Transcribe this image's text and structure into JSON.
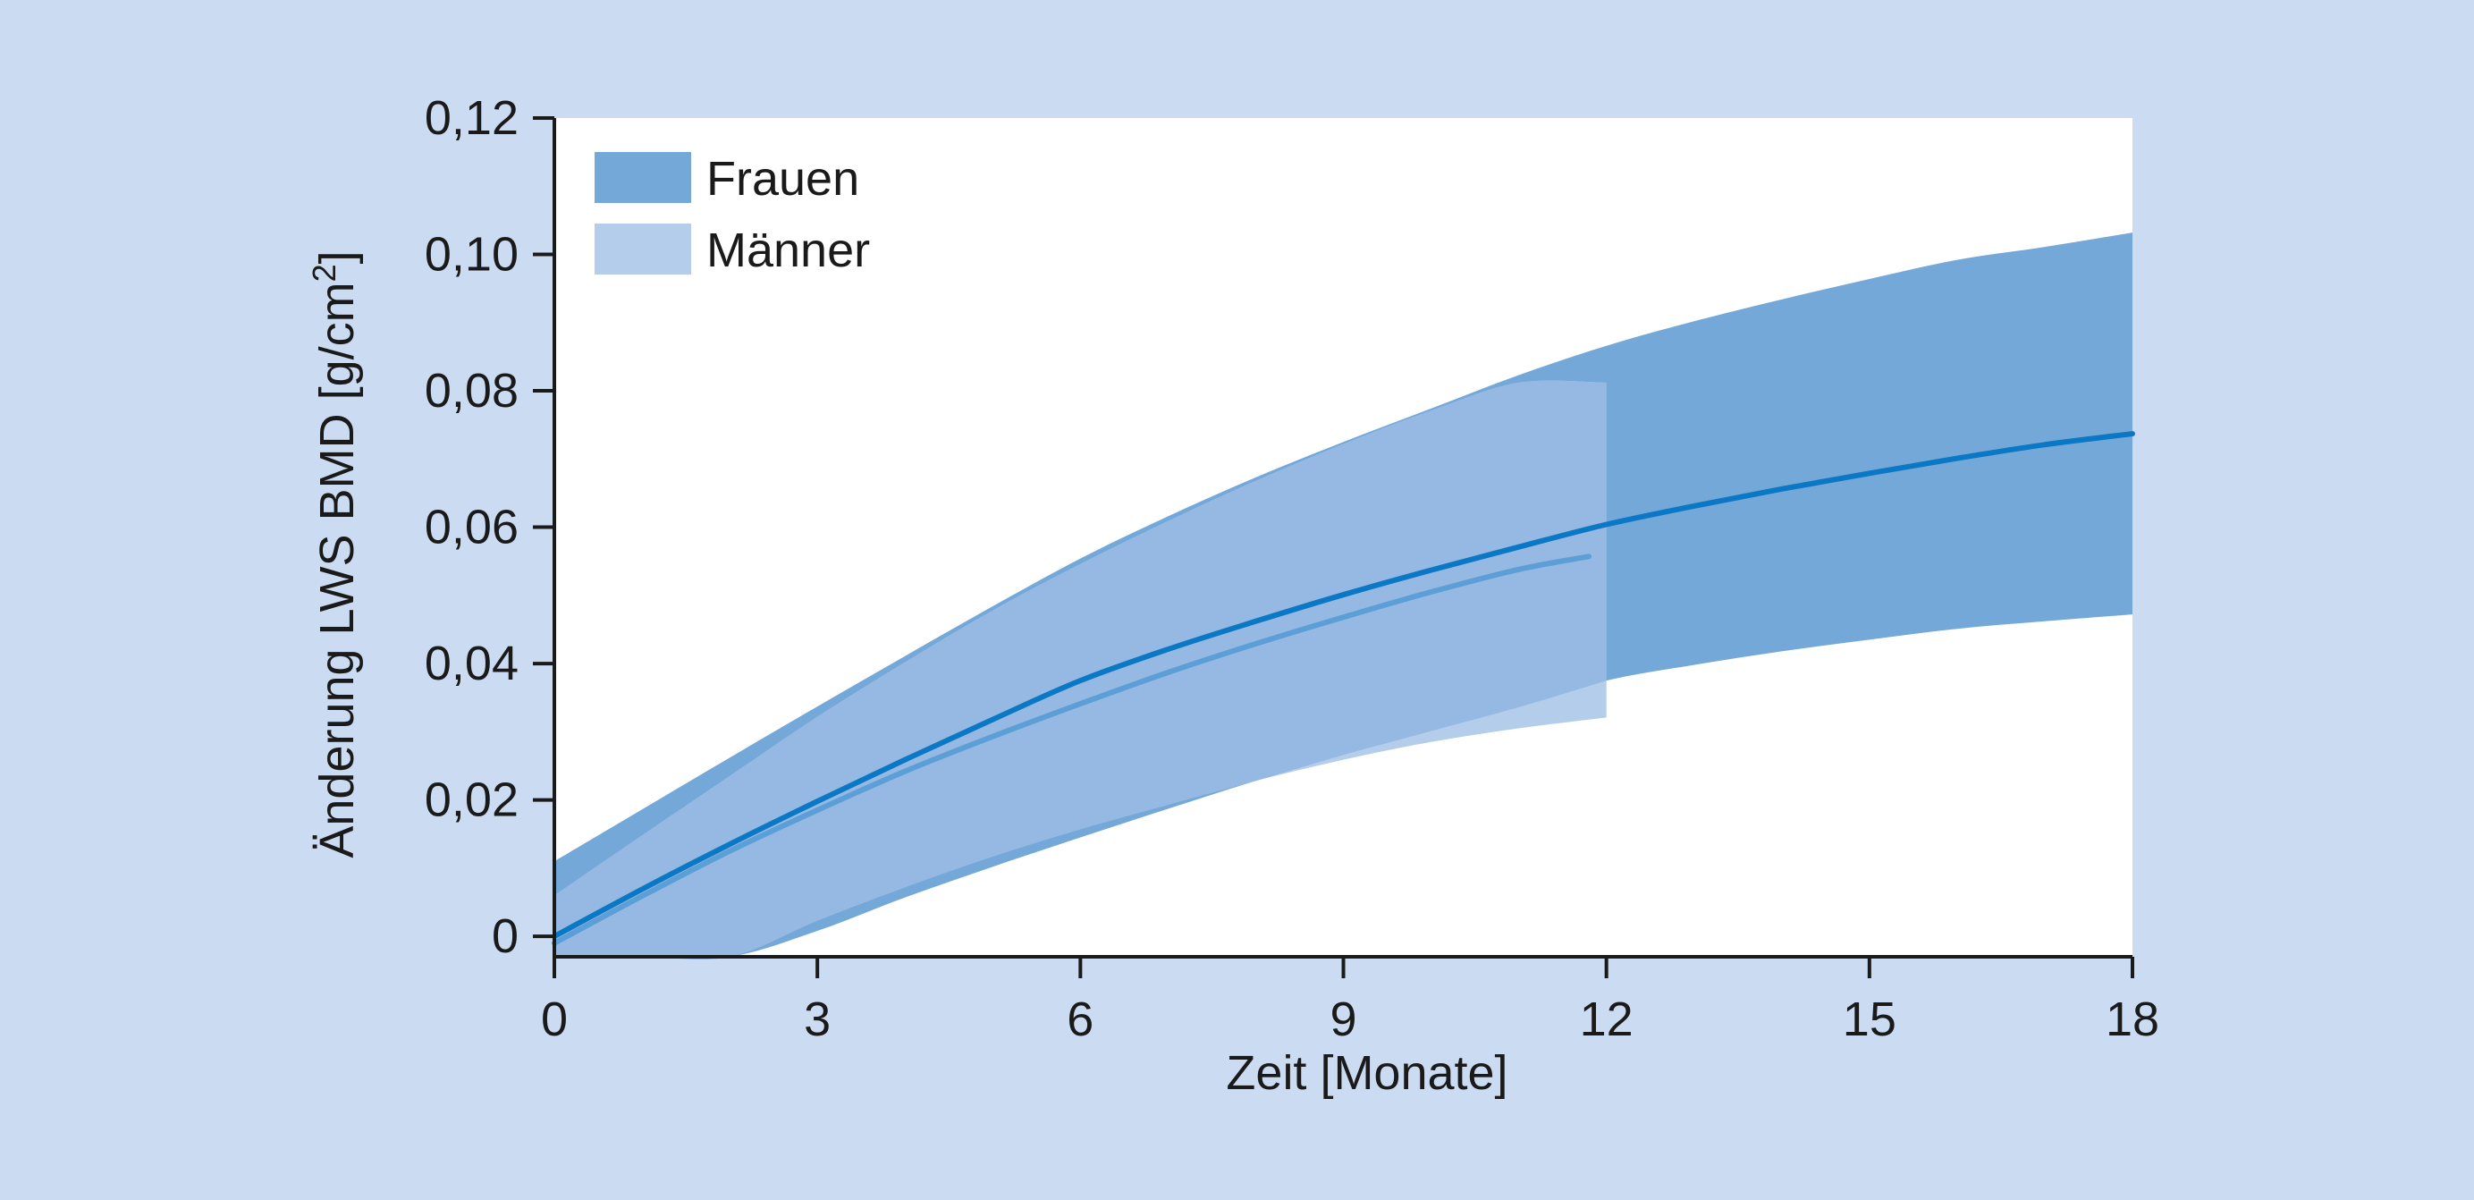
{
  "colors": {
    "background": "#cbdcf2",
    "plot_background": "#ffffff",
    "frauen_band": "#74a8d8",
    "maenner_band": "#b4cdea",
    "frauen_line": "#0a78c4",
    "maenner_line": "#5c9ed6",
    "axis": "#1a1a1a"
  },
  "chart_data": {
    "type": "area",
    "title": "",
    "xlabel": "Zeit [Monate]",
    "ylabel_main": "Änderung LWS BMD [g/cm",
    "ylabel_sup": "2",
    "ylabel_end": "]",
    "xlim": [
      0,
      18
    ],
    "ylim": [
      -0.003,
      0.12
    ],
    "xticks": [
      0,
      3,
      6,
      9,
      12,
      15,
      18
    ],
    "xtick_labels": [
      "0",
      "3",
      "6",
      "9",
      "12",
      "15",
      "18"
    ],
    "yticks": [
      0,
      0.02,
      0.04,
      0.06,
      0.08,
      0.1,
      0.12
    ],
    "ytick_labels": [
      "0",
      "0,02",
      "0,04",
      "0,06",
      "0,08",
      "0,10",
      "0,12"
    ],
    "grid": false,
    "legend_position": "top-left",
    "series": [
      {
        "name": "Frauen",
        "x": [
          0,
          1,
          2,
          3,
          4,
          5,
          6,
          7,
          8,
          9,
          10,
          11,
          12,
          13,
          14,
          15,
          16,
          17,
          18
        ],
        "mean": [
          0,
          0.0069,
          0.0135,
          0.0198,
          0.0259,
          0.0318,
          0.0375,
          0.0421,
          0.0462,
          0.0501,
          0.0537,
          0.0571,
          0.0604,
          0.0631,
          0.0656,
          0.0679,
          0.0701,
          0.0721,
          0.0737
        ],
        "upper": [
          0.011,
          0.0186,
          0.0262,
          0.0337,
          0.0411,
          0.0484,
          0.0554,
          0.0616,
          0.0673,
          0.0725,
          0.0774,
          0.0823,
          0.0866,
          0.0902,
          0.0934,
          0.0964,
          0.0992,
          0.1011,
          0.1032
        ],
        "lower": [
          -0.003,
          -0.003,
          -0.003,
          0.0008,
          0.0057,
          0.0102,
          0.0145,
          0.0187,
          0.0228,
          0.0266,
          0.0301,
          0.0336,
          0.0375,
          0.0398,
          0.0418,
          0.0435,
          0.0451,
          0.0462,
          0.0472
        ]
      },
      {
        "name": "Männer",
        "x": [
          0,
          1,
          2,
          3,
          4,
          5,
          6,
          7,
          8,
          9,
          10,
          11,
          12
        ],
        "mean": [
          -0.001,
          0.0059,
          0.0125,
          0.0185,
          0.0242,
          0.0293,
          0.0341,
          0.0387,
          0.0429,
          0.0468,
          0.0505,
          0.0538,
          0.0557
        ],
        "upper": [
          0.006,
          0.0148,
          0.0235,
          0.0322,
          0.0402,
          0.0478,
          0.0546,
          0.0609,
          0.0668,
          0.0722,
          0.0771,
          0.0812,
          0.0812
        ],
        "lower": [
          -0.003,
          -0.003,
          -0.003,
          0.0023,
          0.0072,
          0.0117,
          0.0157,
          0.0193,
          0.0228,
          0.0259,
          0.0285,
          0.0305,
          0.0321
        ]
      }
    ]
  }
}
